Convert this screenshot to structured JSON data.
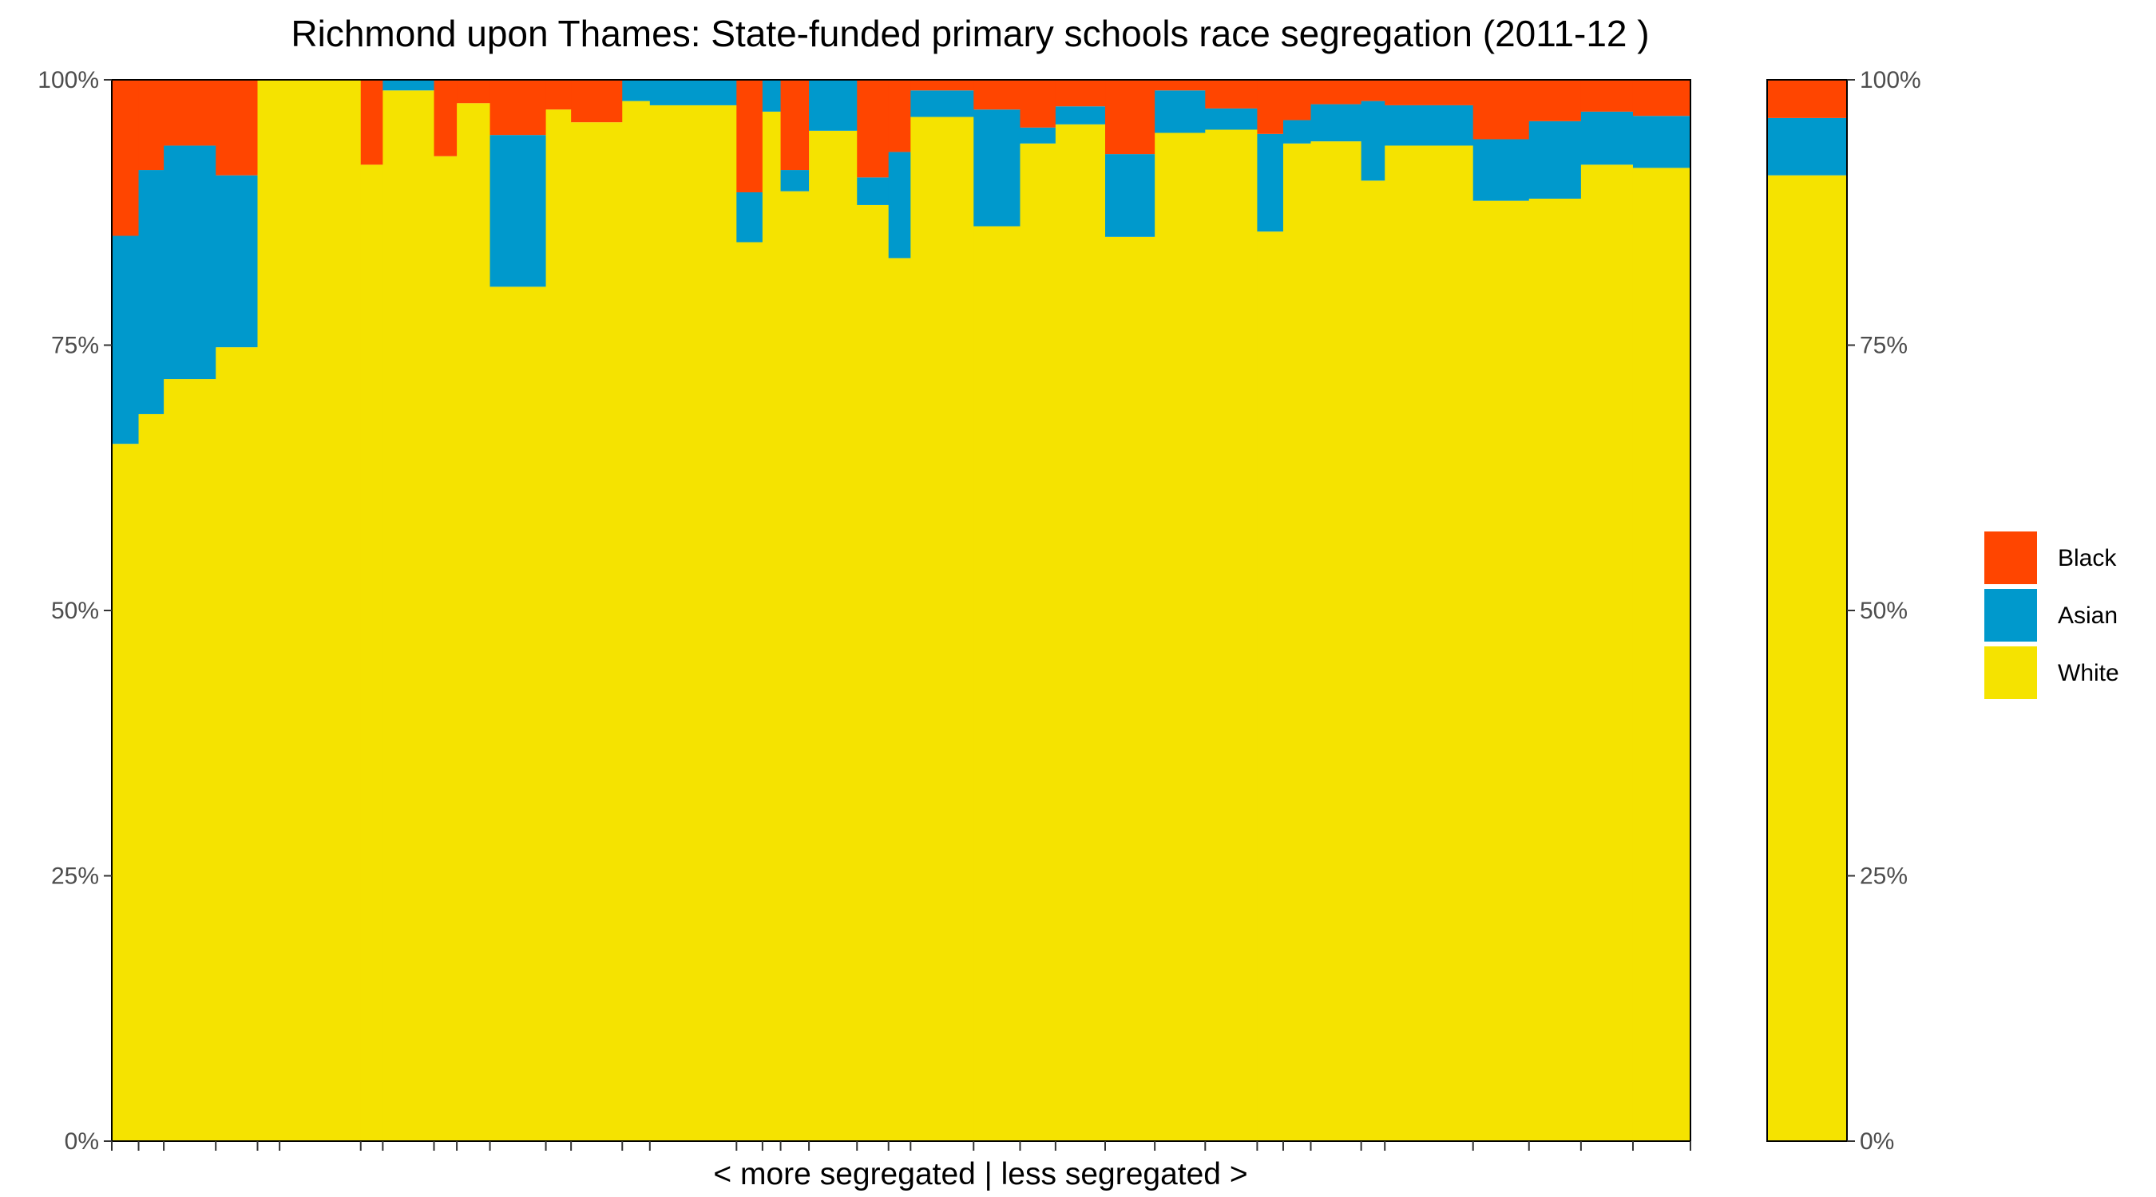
{
  "chart_data": {
    "type": "bar",
    "stacked": true,
    "variable_width": true,
    "title": "Richmond upon Thames: State-funded primary schools race segregation (2011-12 )",
    "xlabel": "< more segregated | less segregated >",
    "ylabel": "",
    "ylim": [
      0,
      1
    ],
    "y_ticks": [
      "0%",
      "25%",
      "50%",
      "75%",
      "100%"
    ],
    "y_tick_values": [
      0,
      0.25,
      0.5,
      0.75,
      1
    ],
    "secondary_y_axis": true,
    "grid": false,
    "legend_position": "right",
    "series": [
      {
        "name": "Black",
        "color": "#FF4500"
      },
      {
        "name": "Asian",
        "color": "#0099CC"
      },
      {
        "name": "White",
        "color": "#F5E300"
      }
    ],
    "bars": [
      {
        "weight": 3.4,
        "white": 0.657,
        "asian": 0.196,
        "black": 0.147
      },
      {
        "weight": 3.2,
        "white": 0.685,
        "asian": 0.23,
        "black": 0.085
      },
      {
        "weight": 6.6,
        "white": 0.718,
        "asian": 0.22,
        "black": 0.062
      },
      {
        "weight": 5.3,
        "white": 0.748,
        "asian": 0.162,
        "black": 0.09
      },
      {
        "weight": 2.8,
        "white": 1.0,
        "asian": 0.0,
        "black": 0.0
      },
      {
        "weight": 10.3,
        "white": 1.0,
        "asian": 0.0,
        "black": 0.0
      },
      {
        "weight": 2.8,
        "white": 0.92,
        "asian": 0.0,
        "black": 0.08
      },
      {
        "weight": 6.5,
        "white": 0.99,
        "asian": 0.01,
        "black": 0.0
      },
      {
        "weight": 2.9,
        "white": 0.928,
        "asian": 0.0,
        "black": 0.072
      },
      {
        "weight": 4.2,
        "white": 0.978,
        "asian": 0.0,
        "black": 0.022
      },
      {
        "weight": 7.1,
        "white": 0.805,
        "asian": 0.143,
        "black": 0.052
      },
      {
        "weight": 3.2,
        "white": 0.972,
        "asian": 0.0,
        "black": 0.028
      },
      {
        "weight": 6.5,
        "white": 0.96,
        "asian": 0.0,
        "black": 0.04
      },
      {
        "weight": 3.5,
        "white": 0.98,
        "asian": 0.02,
        "black": 0.0
      },
      {
        "weight": 11.0,
        "white": 0.976,
        "asian": 0.024,
        "black": 0.0
      },
      {
        "weight": 3.3,
        "white": 0.847,
        "asian": 0.047,
        "black": 0.106
      },
      {
        "weight": 2.3,
        "white": 0.97,
        "asian": 0.03,
        "black": 0.0
      },
      {
        "weight": 3.6,
        "white": 0.895,
        "asian": 0.02,
        "black": 0.085
      },
      {
        "weight": 6.1,
        "white": 0.952,
        "asian": 0.048,
        "black": 0.0
      },
      {
        "weight": 4.0,
        "white": 0.882,
        "asian": 0.026,
        "black": 0.092
      },
      {
        "weight": 2.8,
        "white": 0.832,
        "asian": 0.1,
        "black": 0.068
      },
      {
        "weight": 8.0,
        "white": 0.965,
        "asian": 0.025,
        "black": 0.01
      },
      {
        "weight": 5.9,
        "white": 0.862,
        "asian": 0.11,
        "black": 0.028
      },
      {
        "weight": 4.5,
        "white": 0.94,
        "asian": 0.015,
        "black": 0.045
      },
      {
        "weight": 6.3,
        "white": 0.958,
        "asian": 0.017,
        "black": 0.025
      },
      {
        "weight": 6.3,
        "white": 0.852,
        "asian": 0.078,
        "black": 0.07
      },
      {
        "weight": 6.4,
        "white": 0.95,
        "asian": 0.04,
        "black": 0.01
      },
      {
        "weight": 6.6,
        "white": 0.953,
        "asian": 0.02,
        "black": 0.027
      },
      {
        "weight": 3.3,
        "white": 0.857,
        "asian": 0.092,
        "black": 0.051
      },
      {
        "weight": 3.5,
        "white": 0.94,
        "asian": 0.022,
        "black": 0.038
      },
      {
        "weight": 6.4,
        "white": 0.942,
        "asian": 0.035,
        "black": 0.023
      },
      {
        "weight": 3.0,
        "white": 0.905,
        "asian": 0.075,
        "black": 0.02
      },
      {
        "weight": 11.2,
        "white": 0.938,
        "asian": 0.038,
        "black": 0.024
      },
      {
        "weight": 7.1,
        "white": 0.886,
        "asian": 0.058,
        "black": 0.056
      },
      {
        "weight": 6.6,
        "white": 0.888,
        "asian": 0.073,
        "black": 0.039
      },
      {
        "weight": 6.6,
        "white": 0.92,
        "asian": 0.05,
        "black": 0.03
      },
      {
        "weight": 7.3,
        "white": 0.917,
        "asian": 0.049,
        "black": 0.034
      }
    ],
    "summary_bar": {
      "white": 0.91,
      "asian": 0.054,
      "black": 0.036
    }
  }
}
